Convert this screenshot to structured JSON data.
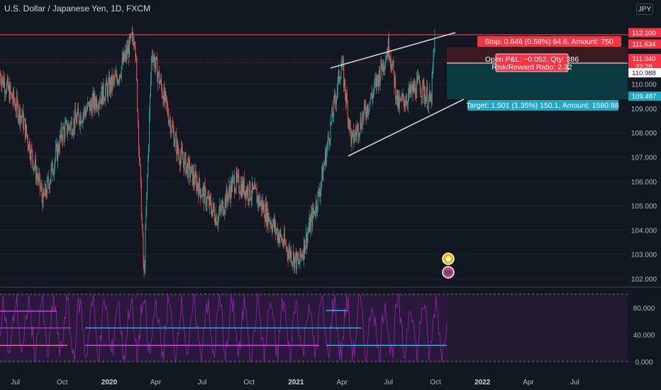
{
  "header": {
    "title": "U.S. Dollar / Japanese Yen, 1D, FXCM",
    "currency": "JPY"
  },
  "chart_data": [
    {
      "type": "candlestick",
      "title": "U.S. Dollar / Japanese Yen, 1D, FXCM",
      "ylim": [
        102.0,
        112.5
      ],
      "y_ticks": [
        "102.000",
        "103.000",
        "104.000",
        "105.000",
        "106.000",
        "107.000",
        "108.000",
        "109.000",
        "110.000",
        "111.000"
      ],
      "x_ticks": [
        "Jul",
        "Oct",
        "2020",
        "Apr",
        "Jul",
        "Oct",
        "2021",
        "Apr",
        "Jul",
        "Oct",
        "2022",
        "Apr",
        "Jul"
      ],
      "price_path": [
        {
          "x": "2019-06-01",
          "y": 110.4
        },
        {
          "x": "2019-07-15",
          "y": 108.6
        },
        {
          "x": "2019-08-25",
          "y": 105.2
        },
        {
          "x": "2019-10-01",
          "y": 108.0
        },
        {
          "x": "2019-12-15",
          "y": 109.5
        },
        {
          "x": "2020-01-15",
          "y": 110.2
        },
        {
          "x": "2020-02-20",
          "y": 112.1
        },
        {
          "x": "2020-03-09",
          "y": 102.0
        },
        {
          "x": "2020-03-24",
          "y": 111.4
        },
        {
          "x": "2020-05-15",
          "y": 107.2
        },
        {
          "x": "2020-07-31",
          "y": 104.5
        },
        {
          "x": "2020-09-01",
          "y": 106.0
        },
        {
          "x": "2020-10-15",
          "y": 105.4
        },
        {
          "x": "2020-12-15",
          "y": 103.2
        },
        {
          "x": "2021-01-06",
          "y": 102.6
        },
        {
          "x": "2021-02-15",
          "y": 105.5
        },
        {
          "x": "2021-03-31",
          "y": 110.9
        },
        {
          "x": "2021-04-20",
          "y": 107.6
        },
        {
          "x": "2021-05-31",
          "y": 109.6
        },
        {
          "x": "2021-07-02",
          "y": 111.6
        },
        {
          "x": "2021-07-20",
          "y": 109.1
        },
        {
          "x": "2021-08-31",
          "y": 110.0
        },
        {
          "x": "2021-09-22",
          "y": 109.2
        },
        {
          "x": "2021-09-30",
          "y": 112.0
        }
      ],
      "price_labels": [
        "112.100",
        "111.634",
        "111.040",
        "22:28",
        "110.988",
        "109.487"
      ],
      "trade": {
        "stop_label": "Stop: 0.646 (0.58%) 64.6, Amount: 750",
        "pnl_label": "Open P&L: −0.052, Qty: 386",
        "rr_label": "Risk/Reward Ratio: 2.32",
        "target_label": "Target: 1.501 (1.35%) 150.1, Amount: 1580.88",
        "entry": 111.04,
        "stop": 111.634,
        "target": 109.487
      },
      "resistance_line": 112.1,
      "channel": {
        "upper": [
          {
            "x": "2021-02-15",
            "y": 110.45
          },
          {
            "x": "2021-10-07",
            "y": 112.45
          }
        ],
        "lower": [
          {
            "x": "2021-03-01",
            "y": 107.1
          },
          {
            "x": "2021-10-15",
            "y": 109.3
          }
        ]
      },
      "colors": {
        "up": "#26a69a",
        "down": "#ef5350",
        "resistance": "#f23645",
        "target": "#089981",
        "stop": "#f23645"
      }
    },
    {
      "type": "line",
      "ylim": [
        0,
        100
      ],
      "y_ticks": [
        "0.000",
        "40.000",
        "80.000"
      ],
      "oscillator": {
        "upper_band": 100,
        "lower_band": 0,
        "color": "#9c27b0"
      }
    }
  ]
}
